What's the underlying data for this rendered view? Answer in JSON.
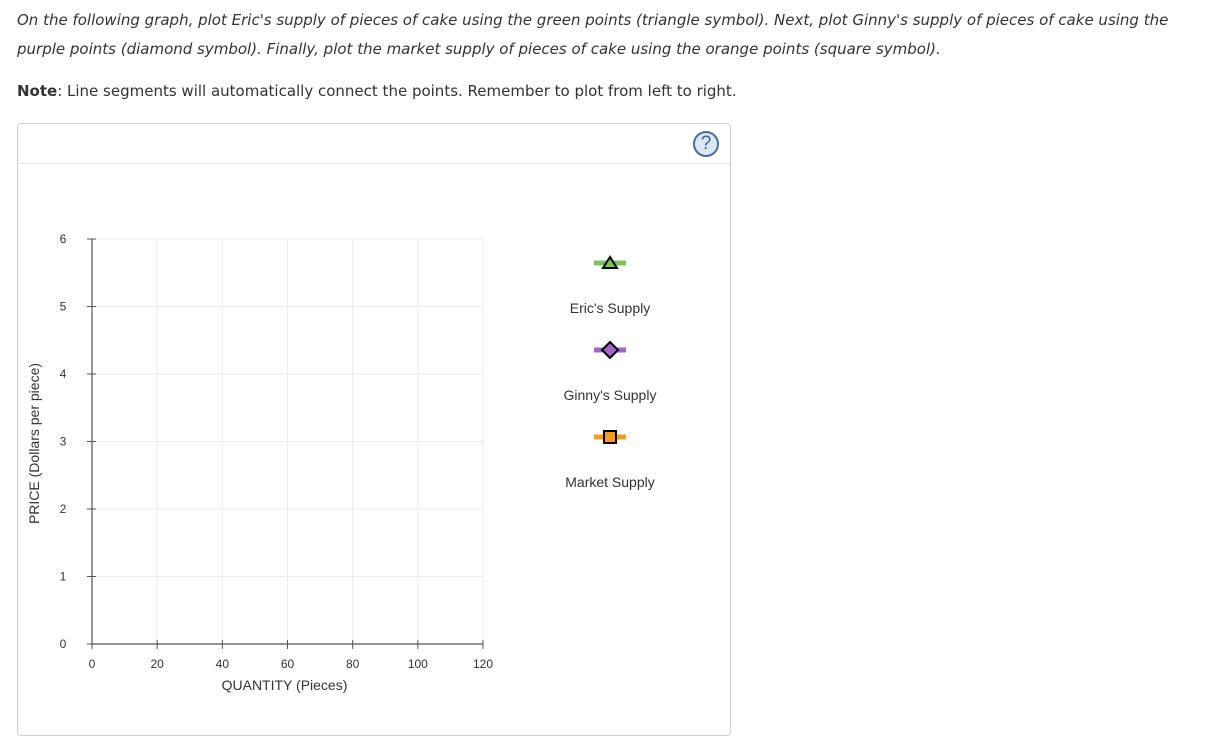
{
  "instructions": {
    "text": "On the following graph, plot Eric's supply of pieces of cake using the green points (triangle symbol). Next, plot Ginny's supply of pieces of cake using the purple points (diamond symbol). Finally, plot the market supply of pieces of cake using the orange points (square symbol).",
    "note_label": "Note",
    "note_text": ": Line segments will automatically connect the points. Remember to plot from left to right."
  },
  "help": {
    "label": "?",
    "icon": "help-icon"
  },
  "chart_data": {
    "type": "line",
    "xlabel": "QUANTITY (Pieces)",
    "ylabel": "PRICE (Dollars per piece)",
    "xlim": [
      0,
      120
    ],
    "ylim": [
      0,
      6
    ],
    "x_ticks": [
      0,
      20,
      40,
      60,
      80,
      100,
      120
    ],
    "y_ticks": [
      0,
      1,
      2,
      3,
      4,
      5,
      6
    ],
    "grid": true,
    "series": [
      {
        "name": "Eric's Supply",
        "color": "#7dc35b",
        "marker": "triangle",
        "values": []
      },
      {
        "name": "Ginny's Supply",
        "color": "#a066c8",
        "marker": "diamond",
        "values": []
      },
      {
        "name": "Market Supply",
        "color": "#f39c1f",
        "marker": "square",
        "values": []
      }
    ],
    "legend_position": "right"
  }
}
